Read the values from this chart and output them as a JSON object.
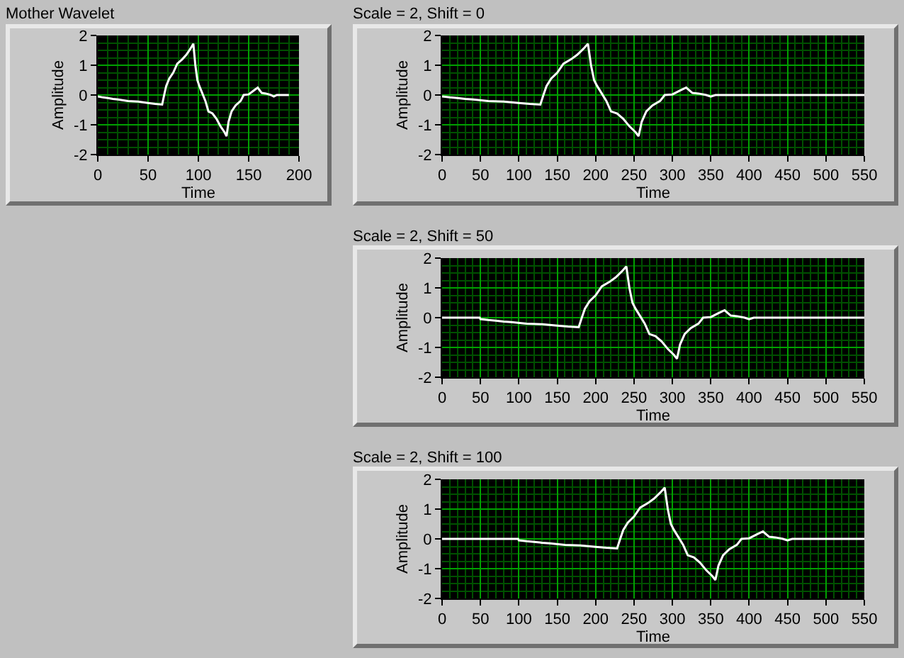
{
  "chart_data": [
    {
      "type": "line",
      "title": "Mother Wavelet",
      "xlabel": "Time",
      "ylabel": "Amplitude",
      "grid": true,
      "series": [
        {
          "color": "#ffffff",
          "x": [
            0,
            5,
            10,
            15,
            20,
            30,
            40,
            50,
            57,
            64,
            66,
            68,
            71,
            75,
            79,
            84,
            88,
            92,
            95,
            97,
            99,
            101,
            104,
            107,
            110,
            114,
            118,
            122,
            126,
            128,
            130,
            133,
            137,
            142,
            145,
            150,
            155,
            159,
            163,
            167,
            172,
            175,
            178,
            190
          ],
          "values": [
            -0.05,
            -0.08,
            -0.1,
            -0.13,
            -0.15,
            -0.2,
            -0.22,
            -0.27,
            -0.3,
            -0.32,
            0,
            0.3,
            0.55,
            0.75,
            1.05,
            1.2,
            1.35,
            1.55,
            1.72,
            1.0,
            0.5,
            0.3,
            0.05,
            -0.2,
            -0.55,
            -0.62,
            -0.8,
            -1.05,
            -1.25,
            -1.38,
            -0.9,
            -0.55,
            -0.35,
            -0.2,
            0,
            0.02,
            0.15,
            0.25,
            0.07,
            0.05,
            0,
            -0.05,
            0,
            0
          ]
        }
      ],
      "xlim": [
        0,
        200
      ],
      "xticks": [
        0,
        {
          "value": 10,
          "label": null
        },
        {
          "value": 20,
          "label": null
        },
        {
          "value": 30,
          "label": null
        },
        {
          "value": 40,
          "label": null
        },
        50,
        {
          "value": 60,
          "label": null
        },
        {
          "value": 70,
          "label": null
        },
        {
          "value": 80,
          "label": null
        },
        {
          "value": 90,
          "label": null
        },
        100,
        {
          "value": 110,
          "label": null
        },
        {
          "value": 120,
          "label": null
        },
        {
          "value": 130,
          "label": null
        },
        {
          "value": 140,
          "label": null
        },
        150,
        {
          "value": 160,
          "label": null
        },
        {
          "value": 170,
          "label": null
        },
        {
          "value": 180,
          "label": null
        },
        {
          "value": 190,
          "label": null
        },
        200
      ],
      "ylim": [
        -2,
        2
      ],
      "yticks": [
        -2,
        {
          "value": -1.75,
          "label": null
        },
        {
          "value": -1.5,
          "label": null
        },
        {
          "value": -1.25,
          "label": null
        },
        -1,
        {
          "value": -0.75,
          "label": null
        },
        {
          "value": -0.5,
          "label": null
        },
        {
          "value": -0.25,
          "label": null
        },
        0,
        {
          "value": 0.25,
          "label": null
        },
        {
          "value": 0.5,
          "label": null
        },
        {
          "value": 0.75,
          "label": null
        },
        1,
        {
          "value": 1.25,
          "label": null
        },
        {
          "value": 1.5,
          "label": null
        },
        {
          "value": 1.75,
          "label": null
        },
        2
      ]
    },
    {
      "type": "line",
      "title": "Scale = 2, Shift = 0",
      "xlabel": "Time",
      "ylabel": "Amplitude",
      "grid": true,
      "series": [
        {
          "color": "#ffffff",
          "x": [
            0,
            10,
            20,
            30,
            40,
            60,
            80,
            100,
            114,
            128,
            132,
            136,
            142,
            150,
            158,
            168,
            176,
            184,
            190,
            194,
            198,
            202,
            208,
            214,
            220,
            228,
            236,
            244,
            252,
            256,
            260,
            266,
            274,
            284,
            290,
            300,
            310,
            318,
            326,
            334,
            344,
            350,
            356,
            380,
            550
          ],
          "values": [
            -0.05,
            -0.08,
            -0.1,
            -0.13,
            -0.15,
            -0.2,
            -0.22,
            -0.27,
            -0.3,
            -0.32,
            0,
            0.3,
            0.55,
            0.75,
            1.05,
            1.2,
            1.35,
            1.55,
            1.72,
            1.0,
            0.5,
            0.3,
            0.05,
            -0.2,
            -0.55,
            -0.62,
            -0.8,
            -1.05,
            -1.25,
            -1.38,
            -0.9,
            -0.55,
            -0.35,
            -0.2,
            0,
            0.02,
            0.15,
            0.25,
            0.07,
            0.05,
            0,
            -0.05,
            0,
            0,
            0
          ]
        }
      ],
      "xlim": [
        0,
        550
      ],
      "xticks": [
        0,
        {
          "value": 10,
          "label": null
        },
        {
          "value": 20,
          "label": null
        },
        {
          "value": 30,
          "label": null
        },
        {
          "value": 40,
          "label": null
        },
        50,
        {
          "value": 60,
          "label": null
        },
        {
          "value": 70,
          "label": null
        },
        {
          "value": 80,
          "label": null
        },
        {
          "value": 90,
          "label": null
        },
        100,
        {
          "value": 110,
          "label": null
        },
        {
          "value": 120,
          "label": null
        },
        {
          "value": 130,
          "label": null
        },
        {
          "value": 140,
          "label": null
        },
        150,
        {
          "value": 160,
          "label": null
        },
        {
          "value": 170,
          "label": null
        },
        {
          "value": 180,
          "label": null
        },
        {
          "value": 190,
          "label": null
        },
        200,
        {
          "value": 210,
          "label": null
        },
        {
          "value": 220,
          "label": null
        },
        {
          "value": 230,
          "label": null
        },
        {
          "value": 240,
          "label": null
        },
        250,
        {
          "value": 260,
          "label": null
        },
        {
          "value": 270,
          "label": null
        },
        {
          "value": 280,
          "label": null
        },
        {
          "value": 290,
          "label": null
        },
        300,
        {
          "value": 310,
          "label": null
        },
        {
          "value": 320,
          "label": null
        },
        {
          "value": 330,
          "label": null
        },
        {
          "value": 340,
          "label": null
        },
        350,
        {
          "value": 360,
          "label": null
        },
        {
          "value": 370,
          "label": null
        },
        {
          "value": 380,
          "label": null
        },
        {
          "value": 390,
          "label": null
        },
        400,
        {
          "value": 410,
          "label": null
        },
        {
          "value": 420,
          "label": null
        },
        {
          "value": 430,
          "label": null
        },
        {
          "value": 440,
          "label": null
        },
        450,
        {
          "value": 460,
          "label": null
        },
        {
          "value": 470,
          "label": null
        },
        {
          "value": 480,
          "label": null
        },
        {
          "value": 490,
          "label": null
        },
        500,
        {
          "value": 510,
          "label": null
        },
        {
          "value": 520,
          "label": null
        },
        {
          "value": 530,
          "label": null
        },
        {
          "value": 540,
          "label": null
        },
        550
      ],
      "ylim": [
        -2,
        2
      ],
      "yticks": [
        -2,
        {
          "value": -1.75,
          "label": null
        },
        {
          "value": -1.5,
          "label": null
        },
        {
          "value": -1.25,
          "label": null
        },
        -1,
        {
          "value": -0.75,
          "label": null
        },
        {
          "value": -0.5,
          "label": null
        },
        {
          "value": -0.25,
          "label": null
        },
        0,
        {
          "value": 0.25,
          "label": null
        },
        {
          "value": 0.5,
          "label": null
        },
        {
          "value": 0.75,
          "label": null
        },
        1,
        {
          "value": 1.25,
          "label": null
        },
        {
          "value": 1.5,
          "label": null
        },
        {
          "value": 1.75,
          "label": null
        },
        2
      ]
    },
    {
      "type": "line",
      "title": "Scale = 2, Shift = 50",
      "xlabel": "Time",
      "ylabel": "Amplitude",
      "grid": true,
      "series": [
        {
          "color": "#ffffff",
          "x": [
            0,
            49,
            50,
            60,
            70,
            80,
            90,
            110,
            130,
            150,
            164,
            178,
            182,
            186,
            192,
            200,
            208,
            218,
            226,
            234,
            240,
            244,
            248,
            252,
            258,
            264,
            270,
            278,
            286,
            294,
            302,
            306,
            310,
            316,
            324,
            334,
            340,
            350,
            360,
            368,
            376,
            384,
            394,
            400,
            406,
            430,
            550
          ],
          "values": [
            0,
            0,
            -0.05,
            -0.08,
            -0.1,
            -0.13,
            -0.15,
            -0.2,
            -0.22,
            -0.27,
            -0.3,
            -0.32,
            0,
            0.3,
            0.55,
            0.75,
            1.05,
            1.2,
            1.35,
            1.55,
            1.72,
            1.0,
            0.5,
            0.3,
            0.05,
            -0.2,
            -0.55,
            -0.62,
            -0.8,
            -1.05,
            -1.25,
            -1.38,
            -0.9,
            -0.55,
            -0.35,
            -0.2,
            0,
            0.02,
            0.15,
            0.25,
            0.07,
            0.05,
            0,
            -0.05,
            0,
            0,
            0
          ]
        }
      ],
      "xlim": [
        0,
        550
      ],
      "xticks": [
        0,
        {
          "value": 10,
          "label": null
        },
        {
          "value": 20,
          "label": null
        },
        {
          "value": 30,
          "label": null
        },
        {
          "value": 40,
          "label": null
        },
        50,
        {
          "value": 60,
          "label": null
        },
        {
          "value": 70,
          "label": null
        },
        {
          "value": 80,
          "label": null
        },
        {
          "value": 90,
          "label": null
        },
        100,
        {
          "value": 110,
          "label": null
        },
        {
          "value": 120,
          "label": null
        },
        {
          "value": 130,
          "label": null
        },
        {
          "value": 140,
          "label": null
        },
        150,
        {
          "value": 160,
          "label": null
        },
        {
          "value": 170,
          "label": null
        },
        {
          "value": 180,
          "label": null
        },
        {
          "value": 190,
          "label": null
        },
        200,
        {
          "value": 210,
          "label": null
        },
        {
          "value": 220,
          "label": null
        },
        {
          "value": 230,
          "label": null
        },
        {
          "value": 240,
          "label": null
        },
        250,
        {
          "value": 260,
          "label": null
        },
        {
          "value": 270,
          "label": null
        },
        {
          "value": 280,
          "label": null
        },
        {
          "value": 290,
          "label": null
        },
        300,
        {
          "value": 310,
          "label": null
        },
        {
          "value": 320,
          "label": null
        },
        {
          "value": 330,
          "label": null
        },
        {
          "value": 340,
          "label": null
        },
        350,
        {
          "value": 360,
          "label": null
        },
        {
          "value": 370,
          "label": null
        },
        {
          "value": 380,
          "label": null
        },
        {
          "value": 390,
          "label": null
        },
        400,
        {
          "value": 410,
          "label": null
        },
        {
          "value": 420,
          "label": null
        },
        {
          "value": 430,
          "label": null
        },
        {
          "value": 440,
          "label": null
        },
        450,
        {
          "value": 460,
          "label": null
        },
        {
          "value": 470,
          "label": null
        },
        {
          "value": 480,
          "label": null
        },
        {
          "value": 490,
          "label": null
        },
        500,
        {
          "value": 510,
          "label": null
        },
        {
          "value": 520,
          "label": null
        },
        {
          "value": 530,
          "label": null
        },
        {
          "value": 540,
          "label": null
        },
        550
      ],
      "ylim": [
        -2,
        2
      ],
      "yticks": [
        -2,
        {
          "value": -1.75,
          "label": null
        },
        {
          "value": -1.5,
          "label": null
        },
        {
          "value": -1.25,
          "label": null
        },
        -1,
        {
          "value": -0.75,
          "label": null
        },
        {
          "value": -0.5,
          "label": null
        },
        {
          "value": -0.25,
          "label": null
        },
        0,
        {
          "value": 0.25,
          "label": null
        },
        {
          "value": 0.5,
          "label": null
        },
        {
          "value": 0.75,
          "label": null
        },
        1,
        {
          "value": 1.25,
          "label": null
        },
        {
          "value": 1.5,
          "label": null
        },
        {
          "value": 1.75,
          "label": null
        },
        2
      ]
    },
    {
      "type": "line",
      "title": "Scale = 2, Shift = 100",
      "xlabel": "Time",
      "ylabel": "Amplitude",
      "grid": true,
      "series": [
        {
          "color": "#ffffff",
          "x": [
            0,
            99,
            100,
            110,
            120,
            130,
            140,
            160,
            180,
            200,
            214,
            228,
            232,
            236,
            242,
            250,
            258,
            268,
            276,
            284,
            290,
            294,
            298,
            302,
            308,
            314,
            320,
            328,
            336,
            344,
            352,
            356,
            360,
            366,
            374,
            384,
            390,
            400,
            410,
            418,
            426,
            434,
            444,
            450,
            456,
            480,
            550
          ],
          "values": [
            0,
            0,
            -0.05,
            -0.08,
            -0.1,
            -0.13,
            -0.15,
            -0.2,
            -0.22,
            -0.27,
            -0.3,
            -0.32,
            0,
            0.3,
            0.55,
            0.75,
            1.05,
            1.2,
            1.35,
            1.55,
            1.72,
            1.0,
            0.5,
            0.3,
            0.05,
            -0.2,
            -0.55,
            -0.62,
            -0.8,
            -1.05,
            -1.25,
            -1.38,
            -0.9,
            -0.55,
            -0.35,
            -0.2,
            0,
            0.02,
            0.15,
            0.25,
            0.07,
            0.05,
            0,
            -0.05,
            0,
            0,
            0
          ]
        }
      ],
      "xlim": [
        0,
        550
      ],
      "xticks": [
        0,
        {
          "value": 10,
          "label": null
        },
        {
          "value": 20,
          "label": null
        },
        {
          "value": 30,
          "label": null
        },
        {
          "value": 40,
          "label": null
        },
        50,
        {
          "value": 60,
          "label": null
        },
        {
          "value": 70,
          "label": null
        },
        {
          "value": 80,
          "label": null
        },
        {
          "value": 90,
          "label": null
        },
        100,
        {
          "value": 110,
          "label": null
        },
        {
          "value": 120,
          "label": null
        },
        {
          "value": 130,
          "label": null
        },
        {
          "value": 140,
          "label": null
        },
        150,
        {
          "value": 160,
          "label": null
        },
        {
          "value": 170,
          "label": null
        },
        {
          "value": 180,
          "label": null
        },
        {
          "value": 190,
          "label": null
        },
        200,
        {
          "value": 210,
          "label": null
        },
        {
          "value": 220,
          "label": null
        },
        {
          "value": 230,
          "label": null
        },
        {
          "value": 240,
          "label": null
        },
        250,
        {
          "value": 260,
          "label": null
        },
        {
          "value": 270,
          "label": null
        },
        {
          "value": 280,
          "label": null
        },
        {
          "value": 290,
          "label": null
        },
        300,
        {
          "value": 310,
          "label": null
        },
        {
          "value": 320,
          "label": null
        },
        {
          "value": 330,
          "label": null
        },
        {
          "value": 340,
          "label": null
        },
        350,
        {
          "value": 360,
          "label": null
        },
        {
          "value": 370,
          "label": null
        },
        {
          "value": 380,
          "label": null
        },
        {
          "value": 390,
          "label": null
        },
        400,
        {
          "value": 410,
          "label": null
        },
        {
          "value": 420,
          "label": null
        },
        {
          "value": 430,
          "label": null
        },
        {
          "value": 440,
          "label": null
        },
        450,
        {
          "value": 460,
          "label": null
        },
        {
          "value": 470,
          "label": null
        },
        {
          "value": 480,
          "label": null
        },
        {
          "value": 490,
          "label": null
        },
        500,
        {
          "value": 510,
          "label": null
        },
        {
          "value": 520,
          "label": null
        },
        {
          "value": 530,
          "label": null
        },
        {
          "value": 540,
          "label": null
        },
        550
      ],
      "ylim": [
        -2,
        2
      ],
      "yticks": [
        -2,
        {
          "value": -1.75,
          "label": null
        },
        {
          "value": -1.5,
          "label": null
        },
        {
          "value": -1.25,
          "label": null
        },
        -1,
        {
          "value": -0.75,
          "label": null
        },
        {
          "value": -0.5,
          "label": null
        },
        {
          "value": -0.25,
          "label": null
        },
        0,
        {
          "value": 0.25,
          "label": null
        },
        {
          "value": 0.5,
          "label": null
        },
        {
          "value": 0.75,
          "label": null
        },
        1,
        {
          "value": 1.25,
          "label": null
        },
        {
          "value": 1.5,
          "label": null
        },
        {
          "value": 1.75,
          "label": null
        },
        2
      ]
    }
  ]
}
